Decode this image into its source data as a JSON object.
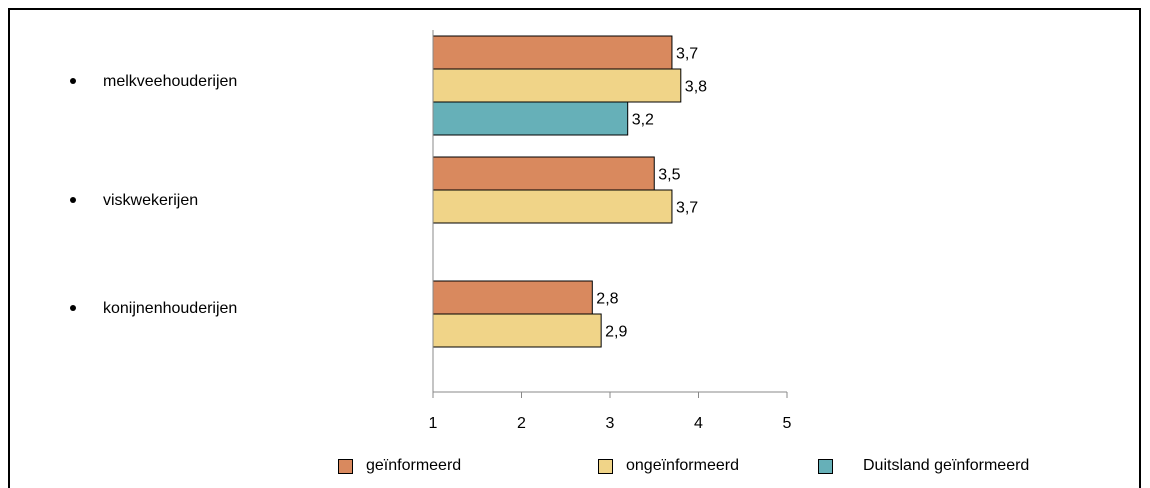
{
  "chart_data": {
    "type": "bar",
    "orientation": "horizontal",
    "categories": [
      "melkveehouderijen",
      "viskwekerijen",
      "konijnenhouderijen"
    ],
    "series": [
      {
        "name": "geïnformeerd",
        "color": "#D9895E",
        "values": [
          3.7,
          3.5,
          2.8
        ],
        "labels": [
          "3,7",
          "3,5",
          "2,8"
        ]
      },
      {
        "name": "ongeïnformeerd",
        "color": "#F0D488",
        "values": [
          3.8,
          3.7,
          2.9
        ],
        "labels": [
          "3,8",
          "3,7",
          "2,9"
        ]
      },
      {
        "name": "Duitsland geïnformeerd",
        "color": "#66B0B8",
        "values": [
          3.2,
          null,
          null
        ],
        "labels": [
          "3,2",
          null,
          null
        ]
      }
    ],
    "xlim": [
      1,
      5
    ],
    "xticks": [
      "1",
      "2",
      "3",
      "4",
      "5"
    ],
    "grid": false,
    "legend_position": "bottom"
  }
}
